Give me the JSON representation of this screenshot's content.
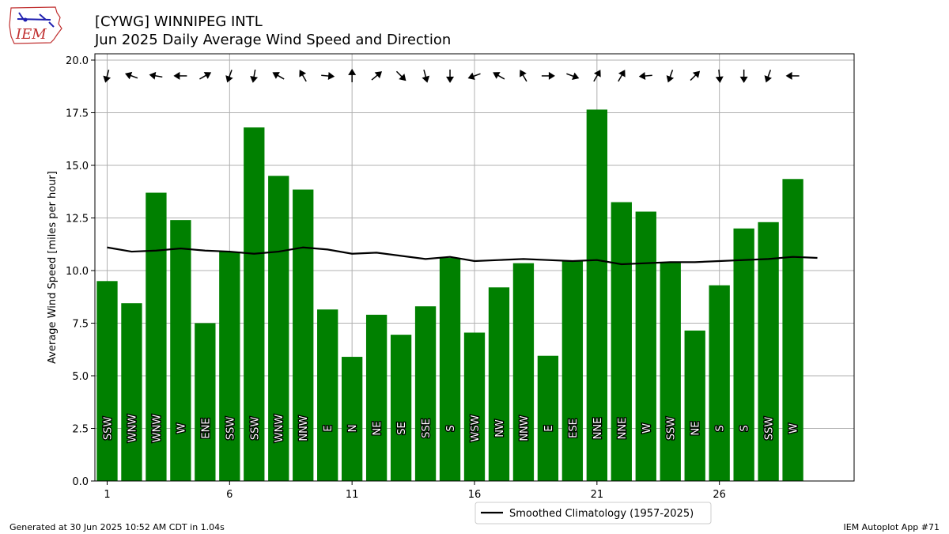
{
  "title": {
    "line1": "[CYWG] WINNIPEG INTL",
    "line2": "Jun 2025 Daily Average Wind Speed and Direction"
  },
  "logo_text": "IEM",
  "footer": {
    "generated": "Generated at 30 Jun 2025 10:52 AM CDT in 1.04s",
    "app": "IEM Autoplot App #71"
  },
  "colors": {
    "bar": "#008000",
    "climatology": "#000000",
    "grid": "#b0b0b0"
  },
  "chart_data": {
    "type": "bar",
    "ylabel": "Average Wind Speed [miles per hour]",
    "xlabel": "",
    "ylim": [
      0,
      20.3
    ],
    "xlim": [
      0.5,
      31.5
    ],
    "xticks": [
      1,
      6,
      11,
      16,
      21,
      26
    ],
    "yticks": [
      0.0,
      2.5,
      5.0,
      7.5,
      10.0,
      12.5,
      15.0,
      17.5,
      20.0
    ],
    "grid": true,
    "legend_placement": "bottom-center",
    "days": [
      1,
      2,
      3,
      4,
      5,
      6,
      7,
      8,
      9,
      10,
      11,
      12,
      13,
      14,
      15,
      16,
      17,
      18,
      19,
      20,
      21,
      22,
      23,
      24,
      25,
      26,
      27,
      28,
      29
    ],
    "series": [
      {
        "name": "",
        "kind": "bar",
        "values": [
          9.5,
          8.45,
          13.7,
          12.4,
          7.5,
          10.9,
          16.8,
          14.5,
          13.85,
          8.15,
          5.9,
          7.9,
          6.95,
          8.3,
          10.6,
          7.05,
          9.2,
          10.35,
          5.95,
          10.45,
          17.65,
          13.25,
          12.8,
          10.4,
          7.15,
          9.3,
          12.0,
          12.3,
          14.35
        ],
        "direction_labels": [
          "SSW",
          "WNW",
          "WNW",
          "W",
          "ENE",
          "SSW",
          "SSW",
          "WNW",
          "NNW",
          "E",
          "N",
          "NE",
          "SE",
          "SSE",
          "S",
          "WSW",
          "NW",
          "NNW",
          "E",
          "ESE",
          "NNE",
          "NNE",
          "W",
          "SSW",
          "NE",
          "S",
          "S",
          "SSW",
          "W"
        ],
        "arrow_degrees": [
          195,
          290,
          280,
          270,
          60,
          200,
          190,
          300,
          330,
          95,
          0,
          50,
          135,
          165,
          180,
          250,
          300,
          330,
          90,
          110,
          30,
          30,
          265,
          200,
          45,
          175,
          180,
          200,
          270
        ]
      },
      {
        "name": "Smoothed Climatology (1957-2025)",
        "kind": "line",
        "x": [
          1,
          2,
          3,
          4,
          5,
          6,
          7,
          8,
          9,
          10,
          11,
          12,
          13,
          14,
          15,
          16,
          17,
          18,
          19,
          20,
          21,
          22,
          23,
          24,
          25,
          26,
          27,
          28,
          29,
          30
        ],
        "values": [
          11.1,
          10.9,
          10.95,
          11.05,
          10.95,
          10.9,
          10.8,
          10.9,
          11.1,
          11.0,
          10.8,
          10.85,
          10.7,
          10.55,
          10.65,
          10.45,
          10.5,
          10.55,
          10.5,
          10.45,
          10.5,
          10.3,
          10.35,
          10.4,
          10.4,
          10.45,
          10.5,
          10.55,
          10.65,
          10.6
        ]
      }
    ]
  }
}
